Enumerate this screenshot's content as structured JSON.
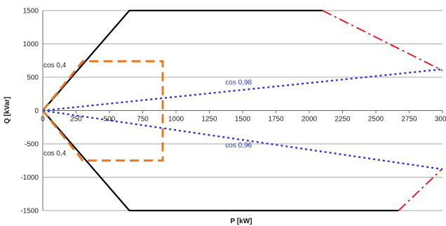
{
  "chart_data": {
    "type": "line",
    "xlabel": "P [kW]",
    "ylabel": "Q [kVar]",
    "xlim": [
      0,
      3000
    ],
    "ylim": [
      -1500,
      1500
    ],
    "x_ticks": [
      {
        "value": 0,
        "label": "0"
      },
      {
        "value": 250,
        "label": "250"
      },
      {
        "value": 500,
        "label": "500"
      },
      {
        "value": 750,
        "label": "750"
      },
      {
        "value": 1000,
        "label": "1000"
      },
      {
        "value": 1250,
        "label": "1250"
      },
      {
        "value": 1500,
        "label": "1500"
      },
      {
        "value": 1750,
        "label": "1750"
      },
      {
        "value": 2000,
        "label": "2000"
      },
      {
        "value": 2250,
        "label": "2250"
      },
      {
        "value": 2500,
        "label": "2500"
      },
      {
        "value": 2750,
        "label": "2750"
      },
      {
        "value": 3000,
        "label": "3000"
      }
    ],
    "y_ticks": [
      {
        "value": 1500,
        "label": "1500"
      },
      {
        "value": 1000,
        "label": "1000"
      },
      {
        "value": 500,
        "label": "500"
      },
      {
        "value": 0,
        "label": "0"
      },
      {
        "value": -500,
        "label": "-500"
      },
      {
        "value": -1000,
        "label": "-1000"
      },
      {
        "value": -1500,
        "label": "-1500"
      }
    ],
    "grid": "horizontal",
    "series": [
      {
        "style": "solid",
        "color": "#000000",
        "x": [
          0,
          650,
          2100
        ],
        "y": [
          0,
          1500,
          1500
        ]
      },
      {
        "style": "solid",
        "color": "#000000",
        "x": [
          0,
          650,
          2670
        ],
        "y": [
          0,
          -1500,
          -1500
        ]
      },
      {
        "style": "dash-dot",
        "color": "#e0202a",
        "x": [
          2100,
          3000
        ],
        "y": [
          1500,
          600
        ]
      },
      {
        "style": "dash-dot",
        "color": "#e0202a",
        "x": [
          2670,
          3000
        ],
        "y": [
          -1500,
          -870
        ]
      },
      {
        "style": "dashed",
        "color": "#e8781e",
        "x": [
          0,
          300,
          900,
          900,
          300,
          0
        ],
        "y": [
          0,
          740,
          740,
          -750,
          -750,
          0
        ]
      },
      {
        "style": "dotted",
        "color": "#2a36d6",
        "x": [
          0,
          3000
        ],
        "y": [
          0,
          620
        ]
      },
      {
        "style": "dotted",
        "color": "#2a36d6",
        "x": [
          0,
          3000
        ],
        "y": [
          0,
          -880
        ]
      }
    ],
    "annotations": [
      {
        "text": "cos 0,4",
        "x": 5,
        "y": 680,
        "color": "#222222"
      },
      {
        "text": "cos 0,4",
        "x": 5,
        "y": -640,
        "color": "#222222"
      },
      {
        "text": "cos 0,98",
        "x": 1370,
        "y": 420,
        "color": "#2a36d6"
      },
      {
        "text": "cos 0,96",
        "x": 1370,
        "y": -520,
        "color": "#2a36d6"
      }
    ]
  }
}
